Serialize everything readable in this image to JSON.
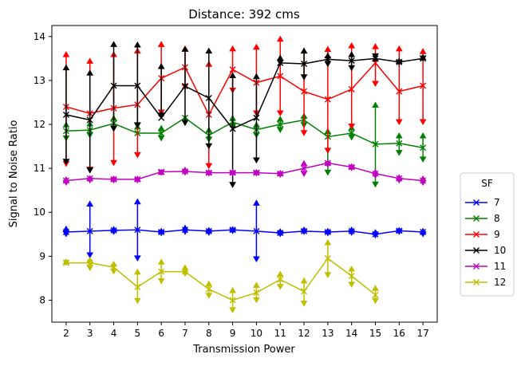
{
  "chart_data": {
    "type": "line",
    "title": "Distance: 392 cms",
    "xlabel": "Transmission Power",
    "ylabel": "Signal to Noise Ratio",
    "x": [
      2,
      3,
      4,
      5,
      6,
      7,
      8,
      9,
      10,
      11,
      12,
      13,
      14,
      15,
      16,
      17
    ],
    "xlim": [
      1.4,
      17.6
    ],
    "ylim": [
      7.5,
      14.25
    ],
    "yticks": [
      8,
      9,
      10,
      11,
      12,
      13,
      14
    ],
    "grid": false,
    "legend": {
      "title": "SF",
      "placement": "outside-right"
    },
    "error_bars": "arrow-capped vertical bars (min/max)",
    "series": [
      {
        "name": "7",
        "color": "#0000ff",
        "values": [
          9.55,
          9.57,
          9.59,
          9.6,
          9.55,
          9.6,
          9.57,
          9.6,
          9.57,
          9.53,
          9.57,
          9.55,
          9.57,
          9.5,
          9.58,
          9.55
        ],
        "err_low": [
          9.45,
          8.97,
          9.5,
          8.9,
          9.47,
          9.5,
          9.48,
          9.52,
          8.88,
          9.45,
          9.5,
          9.47,
          9.48,
          9.42,
          9.5,
          9.45
        ],
        "err_high": [
          9.68,
          10.25,
          9.67,
          10.3,
          9.63,
          9.7,
          9.65,
          9.67,
          10.27,
          9.62,
          9.66,
          9.63,
          9.66,
          9.6,
          9.65,
          9.63
        ]
      },
      {
        "name": "8",
        "color": "#008000",
        "values": [
          11.85,
          11.87,
          12.02,
          11.8,
          11.8,
          12.15,
          11.75,
          12.05,
          11.88,
          12.0,
          12.1,
          11.72,
          11.8,
          11.55,
          11.57,
          11.47
        ],
        "err_low": [
          11.63,
          11.7,
          11.85,
          11.92,
          11.63,
          12.0,
          11.6,
          11.9,
          11.7,
          11.82,
          11.93,
          10.85,
          11.65,
          10.58,
          11.3,
          11.15
        ],
        "err_high": [
          12.05,
          12.07,
          12.2,
          12.0,
          11.97,
          12.2,
          11.93,
          12.2,
          12.05,
          12.18,
          12.25,
          11.9,
          11.98,
          12.5,
          11.8,
          11.8
        ]
      },
      {
        "name": "9",
        "color": "#ff0000",
        "values": [
          12.4,
          12.25,
          12.37,
          12.45,
          13.05,
          13.3,
          12.22,
          13.25,
          12.95,
          13.1,
          12.75,
          12.57,
          12.8,
          13.4,
          12.75,
          12.88
        ],
        "err_low": [
          11.05,
          10.92,
          11.07,
          11.25,
          12.22,
          12.8,
          11.0,
          12.72,
          12.2,
          12.2,
          11.75,
          11.35,
          11.9,
          12.87,
          12.0,
          12.0
        ],
        "err_high": [
          13.65,
          13.5,
          13.65,
          13.73,
          13.88,
          13.78,
          13.43,
          13.78,
          13.82,
          14.0,
          13.73,
          13.77,
          13.85,
          13.83,
          13.78,
          13.72
        ]
      },
      {
        "name": "10",
        "color": "#000000",
        "values": [
          12.22,
          12.1,
          12.88,
          12.88,
          12.15,
          12.87,
          12.6,
          11.9,
          12.15,
          13.4,
          13.38,
          13.48,
          13.45,
          13.5,
          13.42,
          13.5
        ],
        "err_low": [
          11.1,
          10.9,
          11.85,
          11.93,
          12.15,
          11.98,
          11.45,
          10.57,
          11.13,
          13.35,
          13.02,
          13.32,
          13.23,
          13.5,
          13.35,
          13.45
        ],
        "err_high": [
          13.35,
          13.23,
          13.88,
          13.87,
          13.38,
          13.77,
          13.73,
          13.17,
          13.15,
          13.57,
          13.73,
          13.62,
          13.65,
          13.55,
          13.5,
          13.58
        ]
      },
      {
        "name": "11",
        "color": "#bf00bf",
        "values": [
          10.72,
          10.77,
          10.75,
          10.75,
          10.92,
          10.93,
          10.9,
          10.9,
          10.9,
          10.88,
          11.0,
          11.12,
          11.03,
          10.88,
          10.77,
          10.72
        ],
        "err_low": [
          10.62,
          10.67,
          10.67,
          10.67,
          10.85,
          10.85,
          10.83,
          10.83,
          10.83,
          10.8,
          10.82,
          11.03,
          10.95,
          10.78,
          10.67,
          10.62
        ],
        "err_high": [
          10.8,
          10.83,
          10.82,
          10.82,
          10.97,
          11.02,
          10.97,
          10.97,
          10.97,
          10.95,
          11.17,
          11.18,
          11.1,
          10.97,
          10.85,
          10.82
        ]
      },
      {
        "name": "12",
        "color": "#bfbf00",
        "values": [
          8.85,
          8.85,
          8.75,
          8.3,
          8.65,
          8.65,
          8.25,
          8.0,
          8.17,
          8.47,
          8.2,
          8.95,
          8.55,
          8.12,
          null,
          null
        ],
        "err_low": [
          8.8,
          8.68,
          8.6,
          7.93,
          8.38,
          8.55,
          8.05,
          7.72,
          7.95,
          8.25,
          7.87,
          8.52,
          8.3,
          7.93,
          null,
          null
        ],
        "err_high": [
          8.93,
          8.97,
          8.88,
          8.7,
          8.93,
          8.8,
          8.43,
          8.28,
          8.4,
          8.65,
          8.5,
          9.37,
          8.77,
          8.33,
          null,
          null
        ]
      }
    ]
  }
}
